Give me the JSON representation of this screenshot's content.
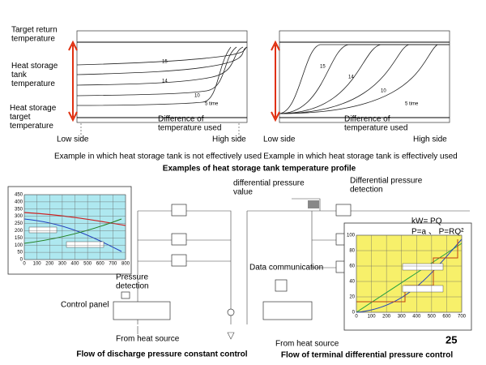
{
  "top_title": "Examples of heat storage tank temperature profile",
  "left_profile": {
    "target_return_temperature": [
      "Target return",
      "temperature"
    ],
    "heat_storage_tank_temperature": [
      "Heat storage",
      "tank",
      "temperature"
    ],
    "heat_storage_target_temperature": [
      "Heat storage",
      "target",
      "temperature"
    ],
    "curve_labels": [
      "15",
      "14",
      "10",
      "5 time"
    ],
    "difference": [
      "Difference of",
      "temperature used"
    ],
    "low_side": "Low side",
    "high_side": "High side",
    "caption": "Example in which heat storage tank is not effectively used"
  },
  "right_profile": {
    "curve_labels": [
      "15",
      "14",
      "10",
      "5 time"
    ],
    "difference": [
      "Difference of",
      "temperature used"
    ],
    "low_side": "Low side",
    "high_side": "High side",
    "caption": "Example in which heat storage tank is effectively used"
  },
  "discharge_control": {
    "inset_yticks": [
      "450",
      "400",
      "350",
      "300",
      "250",
      "200",
      "150",
      "100",
      "50",
      "0"
    ],
    "inset_xticks": [
      "0",
      "100",
      "200",
      "300",
      "400",
      "500",
      "600",
      "700",
      "800"
    ],
    "pressure_detection": [
      "Pressure",
      "detection"
    ],
    "control_panel": "Control panel",
    "from_heat_source": "From heat source",
    "caption": "Flow of discharge pressure constant control"
  },
  "differential_control": {
    "differential_pressure_value": [
      "differential pressure",
      "value"
    ],
    "differential_pressure_detection": [
      "Differential pressure",
      "detection"
    ],
    "formula_1": "kW= PQ",
    "formula_2": "P=a 、    P=RQ²",
    "data_communication": "Data communication",
    "inset_yticks": [
      "100",
      "80",
      "60",
      "40",
      "20",
      "0"
    ],
    "inset_xticks": [
      "0",
      "100",
      "200",
      "300",
      "400",
      "500",
      "600",
      "700"
    ],
    "from_heat_source": "From heat source",
    "caption": "Flow of terminal differential pressure control"
  },
  "page_number": "25"
}
